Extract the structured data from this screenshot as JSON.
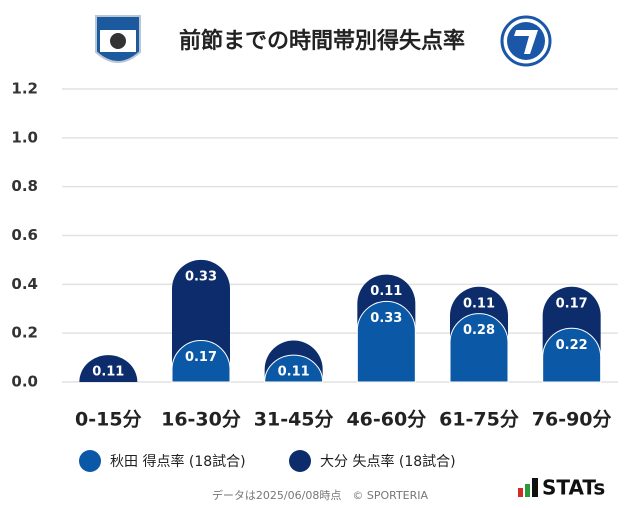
{
  "chart_data": {
    "type": "bar",
    "stacked": true,
    "title": "前節までの時間帯別得失点率",
    "categories": [
      "0-15分",
      "16-30分",
      "31-45分",
      "46-60分",
      "61-75分",
      "76-90分"
    ],
    "series": [
      {
        "name": "秋田 得点率 (18試合)",
        "color": "#0b58a6",
        "values": [
          0,
          0.17,
          0.11,
          0.33,
          0.28,
          0.22
        ]
      },
      {
        "name": "大分 失点率 (18試合)",
        "color": "#0c2c6c",
        "values": [
          0.11,
          0.33,
          0.06,
          0.11,
          0.11,
          0.17
        ]
      }
    ],
    "ylim": [
      0,
      1.2
    ],
    "yticks": [
      {
        "value": 0,
        "label": "0.0"
      },
      0.2,
      0.4,
      0.6,
      0.8,
      {
        "value": 1,
        "label": "1.0"
      },
      1.2
    ],
    "grid": true,
    "legend": "bottom",
    "footer": "データは2025/06/08時点　© SPORTERIA",
    "brand": "STATs"
  }
}
